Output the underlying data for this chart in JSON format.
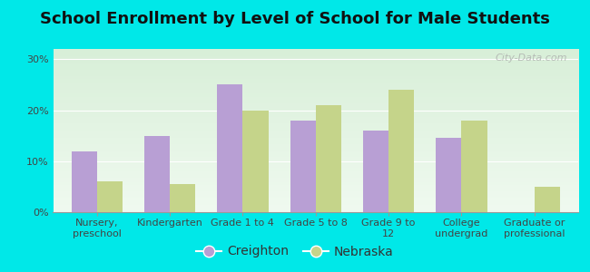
{
  "title": "School Enrollment by Level of School for Male Students",
  "categories": [
    "Nursery,\npreschool",
    "Kindergarten",
    "Grade 1 to 4",
    "Grade 5 to 8",
    "Grade 9 to\n12",
    "College\nundergrad",
    "Graduate or\nprofessional"
  ],
  "creighton": [
    12,
    15,
    25,
    18,
    16,
    14.5,
    0
  ],
  "nebraska": [
    6,
    5.5,
    20,
    21,
    24,
    18,
    5
  ],
  "creighton_color": "#b89fd4",
  "nebraska_color": "#c5d48a",
  "background_color": "#00e8e8",
  "plot_bg_top": "#d8efd8",
  "plot_bg_bottom": "#f0faf0",
  "ylim": [
    0,
    32
  ],
  "yticks": [
    0,
    10,
    20,
    30
  ],
  "ytick_labels": [
    "0%",
    "10%",
    "20%",
    "30%"
  ],
  "title_fontsize": 13,
  "tick_fontsize": 8,
  "legend_fontsize": 10,
  "bar_width": 0.35,
  "watermark": "City-Data.com"
}
